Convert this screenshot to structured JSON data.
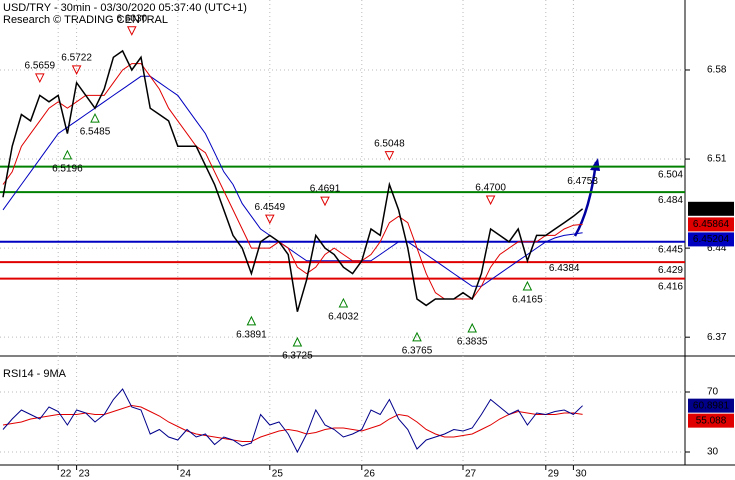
{
  "chart_data": [
    {
      "type": "line",
      "title": "USD/TRY - 30min - 03/30/2020 05:37:40 (UTC+1)",
      "subtitle": "Research © TRADING CENTRAL",
      "categories": [
        null,
        null,
        null,
        null,
        null,
        null,
        "22",
        null,
        "23",
        null,
        null,
        null,
        null,
        null,
        null,
        null,
        null,
        null,
        null,
        "24",
        null,
        null,
        null,
        null,
        null,
        null,
        null,
        null,
        null,
        "25",
        null,
        null,
        null,
        null,
        null,
        null,
        null,
        null,
        null,
        "26",
        null,
        null,
        null,
        null,
        null,
        null,
        null,
        null,
        null,
        null,
        "27",
        null,
        null,
        null,
        null,
        null,
        null,
        null,
        null,
        "29",
        null,
        null,
        "30",
        null
      ],
      "series": [
        {
          "color": "#000000",
          "values": [
            6.48,
            6.52,
            6.545,
            6.54,
            6.56,
            6.555,
            6.56,
            6.53,
            6.57,
            6.56,
            6.55,
            6.565,
            6.59,
            6.595,
            6.58,
            6.59,
            6.55,
            6.545,
            6.54,
            6.52,
            6.52,
            6.52,
            6.505,
            6.49,
            6.47,
            6.45,
            6.44,
            6.42,
            6.445,
            6.45,
            6.445,
            6.435,
            6.39,
            6.415,
            6.45,
            6.44,
            6.435,
            6.425,
            6.42,
            6.43,
            6.455,
            6.45,
            6.49,
            6.47,
            6.44,
            6.4,
            6.395,
            6.4,
            6.4,
            6.4,
            6.405,
            6.4,
            6.42,
            6.455,
            6.45,
            6.445,
            6.455,
            6.43,
            6.45,
            6.45,
            6.455,
            6.46,
            6.465,
            6.4709
          ]
        },
        {
          "color": "#e00000",
          "values": [
            6.49,
            6.5,
            6.52,
            6.53,
            6.54,
            6.55,
            6.555,
            6.55,
            6.555,
            6.56,
            6.56,
            6.56,
            6.57,
            6.58,
            6.585,
            6.585,
            6.575,
            6.565,
            6.55,
            6.54,
            6.53,
            6.52,
            6.515,
            6.5,
            6.485,
            6.47,
            6.455,
            6.44,
            6.44,
            6.44,
            6.445,
            6.44,
            6.425,
            6.42,
            6.425,
            6.435,
            6.44,
            6.435,
            6.43,
            6.43,
            6.435,
            6.445,
            6.46,
            6.465,
            6.46,
            6.44,
            6.42,
            6.405,
            6.4,
            6.4,
            6.4,
            6.4,
            6.41,
            6.425,
            6.435,
            6.44,
            6.445,
            6.445,
            6.445,
            6.45,
            6.45,
            6.455,
            6.458,
            6.45864
          ]
        },
        {
          "color": "#0000c0",
          "values": [
            6.47,
            6.48,
            6.49,
            6.5,
            6.51,
            6.52,
            6.53,
            6.535,
            6.54,
            6.545,
            6.55,
            6.555,
            6.56,
            6.565,
            6.57,
            6.575,
            6.575,
            6.57,
            6.565,
            6.56,
            6.55,
            6.54,
            6.53,
            6.515,
            6.5,
            6.49,
            6.475,
            6.465,
            6.455,
            6.45,
            6.445,
            6.44,
            6.435,
            6.43,
            6.43,
            6.43,
            6.43,
            6.43,
            6.43,
            6.43,
            6.43,
            6.435,
            6.44,
            6.445,
            6.445,
            6.44,
            6.435,
            6.43,
            6.425,
            6.42,
            6.415,
            6.41,
            6.41,
            6.415,
            6.42,
            6.425,
            6.43,
            6.435,
            6.44,
            6.445,
            6.448,
            6.45,
            6.451,
            6.45204
          ]
        }
      ],
      "levels": [
        {
          "value": 6.504,
          "color": "#008000"
        },
        {
          "value": 6.484,
          "color": "#008000"
        },
        {
          "value": 6.445,
          "color": "#0000c0"
        },
        {
          "value": 6.429,
          "color": "#e00000"
        },
        {
          "value": 6.416,
          "color": "#e00000"
        }
      ],
      "annotations": [
        {
          "value": 6.5659,
          "label": "6.5659",
          "marker": "high"
        },
        {
          "value": 6.5722,
          "label": "6.5722",
          "marker": "high"
        },
        {
          "value": 6.603,
          "label": "6.6030",
          "marker": "high"
        },
        {
          "value": 6.5485,
          "label": "6.5485",
          "marker": "low"
        },
        {
          "value": 6.5196,
          "label": "6.5196",
          "marker": "low"
        },
        {
          "value": 6.4549,
          "label": "6.4549",
          "marker": "high"
        },
        {
          "value": 6.4691,
          "label": "6.4691",
          "marker": "high"
        },
        {
          "value": 6.5048,
          "label": "6.5048",
          "marker": "high"
        },
        {
          "value": 6.47,
          "label": "6.4700",
          "marker": "high"
        },
        {
          "value": 6.4753,
          "label": "6.4753",
          "marker": "none"
        },
        {
          "value": 6.3891,
          "label": "6.3891",
          "marker": "low"
        },
        {
          "value": 6.3725,
          "label": "6.3725",
          "marker": "low"
        },
        {
          "value": 6.4032,
          "label": "6.4032",
          "marker": "low"
        },
        {
          "value": 6.3765,
          "label": "6.3765",
          "marker": "low"
        },
        {
          "value": 6.3835,
          "label": "6.3835",
          "marker": "low"
        },
        {
          "value": 6.4165,
          "label": "6.4165",
          "marker": "low"
        },
        {
          "value": 6.4384,
          "label": "6.4384",
          "marker": "none"
        }
      ],
      "ylim": [
        6.356,
        6.635
      ],
      "yticks": [
        6.37,
        6.44,
        6.51,
        6.58
      ],
      "grid": true
    },
    {
      "type": "line",
      "title": "RSI14 - 9MA",
      "series": [
        {
          "color": "#00008b",
          "values": [
            45,
            52,
            58,
            55,
            52,
            60,
            57,
            48,
            58,
            56,
            50,
            55,
            65,
            72,
            60,
            58,
            42,
            45,
            40,
            38,
            45,
            40,
            42,
            35,
            40,
            38,
            34,
            36,
            55,
            48,
            50,
            42,
            30,
            42,
            58,
            48,
            45,
            40,
            42,
            45,
            58,
            55,
            65,
            52,
            45,
            32,
            38,
            40,
            42,
            45,
            44,
            46,
            55,
            65,
            60,
            55,
            58,
            48,
            56,
            55,
            57,
            58,
            55,
            60.8981
          ]
        },
        {
          "color": "#e00000",
          "values": [
            48,
            49,
            50,
            52,
            53,
            54,
            55,
            55,
            55,
            56,
            55,
            55,
            57,
            59,
            61,
            60,
            57,
            54,
            50,
            47,
            44,
            42,
            41,
            40,
            39,
            38,
            37,
            37,
            40,
            42,
            44,
            45,
            44,
            42,
            43,
            45,
            46,
            46,
            45,
            44,
            46,
            48,
            52,
            55,
            54,
            50,
            45,
            42,
            40,
            40,
            41,
            42,
            45,
            48,
            52,
            55,
            57,
            56,
            55,
            55,
            55,
            56,
            56,
            55.088
          ]
        }
      ],
      "ylim": [
        21.33,
        90
      ],
      "yticks": [
        30,
        70
      ],
      "grid": true
    }
  ]
}
